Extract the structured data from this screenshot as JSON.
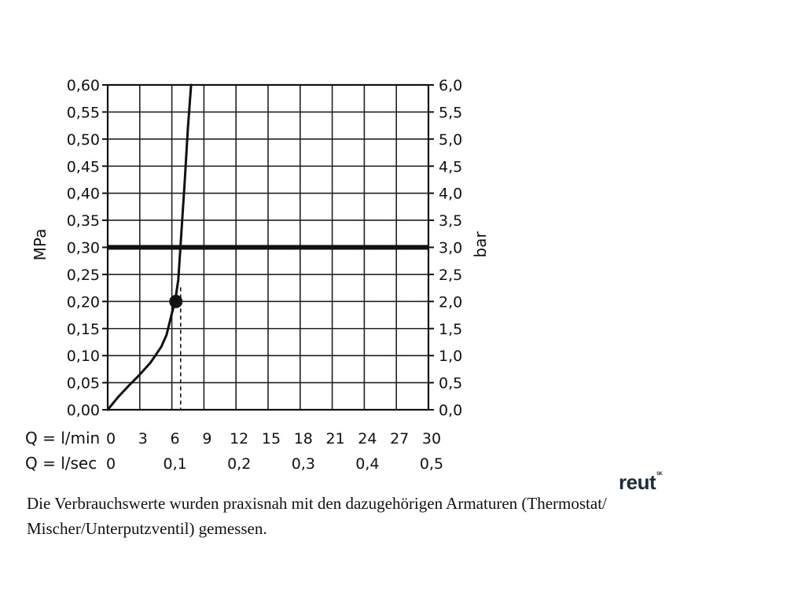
{
  "chart_data": {
    "type": "line",
    "xlabel_rows": [
      {
        "label": "Q = l/min",
        "ticks": [
          "0",
          "3",
          "6",
          "9",
          "12",
          "15",
          "18",
          "21",
          "24",
          "27",
          "30"
        ]
      },
      {
        "label": "Q = l/sec",
        "ticks": [
          "0",
          "0,1",
          "0,2",
          "0,3",
          "0,4",
          "0,5"
        ]
      }
    ],
    "ylabel_left": "MPa",
    "ylabel_right": "bar",
    "yticks_left": [
      "0,00",
      "0,05",
      "0,10",
      "0,15",
      "0,20",
      "0,25",
      "0,30",
      "0,35",
      "0,40",
      "0,45",
      "0,50",
      "0,55",
      "0,60"
    ],
    "yticks_right": [
      "0,0",
      "0,5",
      "1,0",
      "1,5",
      "2,0",
      "2,5",
      "3,0",
      "3,5",
      "4,0",
      "4,5",
      "5,0",
      "5,5",
      "6,0"
    ],
    "xlim": [
      0,
      30
    ],
    "ylim": [
      0,
      0.6
    ],
    "grid": true,
    "series": [
      {
        "x": [
          0,
          1,
          2,
          3,
          4,
          5,
          5.5,
          6,
          6.3,
          6.6,
          6.8,
          7,
          7.2,
          7.5,
          7.8
        ],
        "y": [
          0,
          0.024,
          0.045,
          0.065,
          0.087,
          0.116,
          0.138,
          0.178,
          0.2,
          0.24,
          0.3,
          0.36,
          0.42,
          0.52,
          0.6
        ]
      }
    ],
    "reference_line": {
      "y": 0.3
    },
    "marker": {
      "x": 6.6,
      "y": 0.2
    }
  },
  "caption": "Die Verbrauchswerte wurden praxisnah mit den dazugehörigen Armaturen (Thermostat/ Mischer/Unterputzventil) gemessen.",
  "logo": {
    "text": "reut",
    "sup": "SK"
  }
}
